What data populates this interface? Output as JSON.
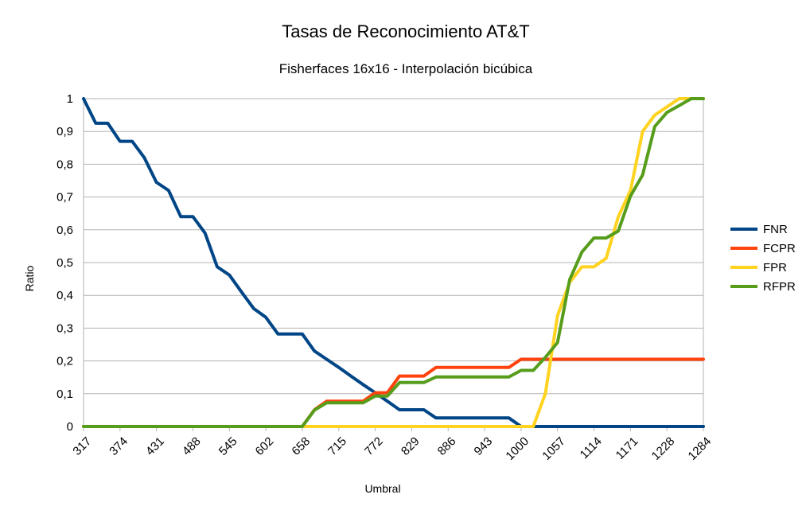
{
  "chart_data": {
    "type": "line",
    "title": "Tasas de Reconocimiento AT&T",
    "subtitle": "Fisherfaces 16x16 - Interpolación bicúbica",
    "xlabel": "Umbral",
    "ylabel": "Ratio",
    "ylim": [
      0,
      1
    ],
    "y_ticks": [
      "0",
      "0,1",
      "0,2",
      "0,3",
      "0,4",
      "0,5",
      "0,6",
      "0,7",
      "0,8",
      "0,9",
      "1"
    ],
    "x_tick_labels": [
      "317",
      "374",
      "431",
      "488",
      "545",
      "602",
      "658",
      "715",
      "772",
      "829",
      "886",
      "943",
      "1000",
      "1057",
      "1114",
      "1171",
      "1228",
      "1284"
    ],
    "x": [
      "317",
      "336",
      "355",
      "374",
      "393",
      "412",
      "431",
      "450",
      "469",
      "488",
      "507",
      "526",
      "545",
      "564",
      "583",
      "602",
      "620",
      "639",
      "658",
      "677",
      "696",
      "715",
      "734",
      "753",
      "772",
      "791",
      "810",
      "829",
      "848",
      "867",
      "886",
      "905",
      "924",
      "943",
      "962",
      "981",
      "1000",
      "1019",
      "1038",
      "1057",
      "1076",
      "1095",
      "1114",
      "1133",
      "1152",
      "1171",
      "1190",
      "1209",
      "1228",
      "1247",
      "1266",
      "1284"
    ],
    "grid": true,
    "legend_position": "right",
    "series": [
      {
        "name": "FNR",
        "color": "#004586",
        "values": [
          1,
          0.925,
          0.925,
          0.87,
          0.87,
          0.82,
          0.745,
          0.72,
          0.64,
          0.64,
          0.59,
          0.487,
          0.462,
          0.41,
          0.36,
          0.333,
          0.282,
          0.282,
          0.282,
          0.23,
          0.205,
          0.18,
          0.154,
          0.128,
          0.103,
          0.077,
          0.051,
          0.051,
          0.051,
          0.026,
          0.026,
          0.026,
          0.026,
          0.026,
          0.026,
          0.026,
          0,
          0,
          0,
          0,
          0,
          0,
          0,
          0,
          0,
          0,
          0,
          0,
          0,
          0,
          0,
          0
        ]
      },
      {
        "name": "FCPR",
        "color": "#ff420e",
        "values": [
          0,
          0,
          0,
          0,
          0,
          0,
          0,
          0,
          0,
          0,
          0,
          0,
          0,
          0,
          0,
          0,
          0,
          0,
          0,
          0.051,
          0.077,
          0.077,
          0.077,
          0.077,
          0.103,
          0.103,
          0.154,
          0.154,
          0.154,
          0.18,
          0.18,
          0.18,
          0.18,
          0.18,
          0.18,
          0.18,
          0.205,
          0.205,
          0.205,
          0.205,
          0.205,
          0.205,
          0.205,
          0.205,
          0.205,
          0.205,
          0.205,
          0.205,
          0.205,
          0.205,
          0.205,
          0.205
        ]
      },
      {
        "name": "FPR",
        "color": "#ffd320",
        "values": [
          0,
          0,
          0,
          0,
          0,
          0,
          0,
          0,
          0,
          0,
          0,
          0,
          0,
          0,
          0,
          0,
          0,
          0,
          0,
          0,
          0,
          0,
          0,
          0,
          0,
          0,
          0,
          0,
          0,
          0,
          0,
          0,
          0,
          0,
          0,
          0,
          0,
          0,
          0.1,
          0.338,
          0.44,
          0.487,
          0.487,
          0.513,
          0.64,
          0.72,
          0.9,
          0.95,
          0.975,
          1,
          1,
          1
        ]
      },
      {
        "name": "RFPR",
        "color": "#579d1c",
        "values": [
          0,
          0,
          0,
          0,
          0,
          0,
          0,
          0,
          0,
          0,
          0,
          0,
          0,
          0,
          0,
          0,
          0,
          0,
          0,
          0.05,
          0.072,
          0.072,
          0.072,
          0.072,
          0.093,
          0.093,
          0.134,
          0.134,
          0.134,
          0.151,
          0.151,
          0.151,
          0.151,
          0.151,
          0.151,
          0.151,
          0.171,
          0.171,
          0.211,
          0.256,
          0.448,
          0.532,
          0.575,
          0.575,
          0.596,
          0.703,
          0.767,
          0.915,
          0.958,
          0.979,
          1,
          1
        ]
      }
    ]
  }
}
